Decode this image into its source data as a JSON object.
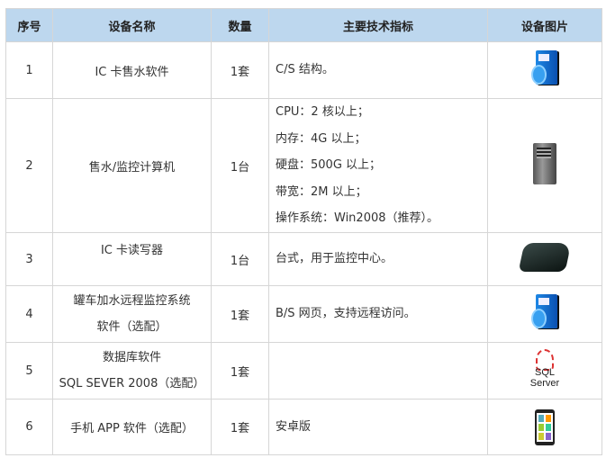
{
  "headers": [
    "序号",
    "设备名称",
    "数量",
    "主要技术指标",
    "设备图片"
  ],
  "rows": [
    {
      "no": "1",
      "name": [
        "IC 卡售水软件"
      ],
      "qty": "1套",
      "spec": [
        "C/S 结构。"
      ],
      "image": "software-box-icon"
    },
    {
      "no": "2",
      "name": [
        "售水/监控计算机"
      ],
      "qty": "1台",
      "spec": [
        "CPU：2 核以上；",
        "内存：4G 以上；",
        "硬盘：500G 以上；",
        "带宽：2M 以上；",
        "操作系统：Win2008（推荐）。"
      ],
      "image": "server-tower-icon"
    },
    {
      "no": "3",
      "name": [
        "IC 卡读写器"
      ],
      "qty": "1台",
      "spec": [
        "台式，用于监控中心。"
      ],
      "image": "card-reader-icon"
    },
    {
      "no": "4",
      "name": [
        "罐车加水远程监控系统",
        "软件（选配）"
      ],
      "qty": "1套",
      "spec": [
        "B/S 网页，支持远程访问。"
      ],
      "image": "software-box-icon"
    },
    {
      "no": "5",
      "name": [
        "数据库软件",
        "SQL SEVER 2008（选配）"
      ],
      "qty": "1套",
      "spec": [],
      "image": "sql-server-logo",
      "logo_text": "SQL Server"
    },
    {
      "no": "6",
      "name": [
        "手机 APP 软件（选配）"
      ],
      "qty": "1套",
      "spec": [
        "安卓版"
      ],
      "image": "smartphone-icon"
    }
  ],
  "colors": {
    "header_bg": "#bdd7ee",
    "border": "#d6d6d6"
  }
}
